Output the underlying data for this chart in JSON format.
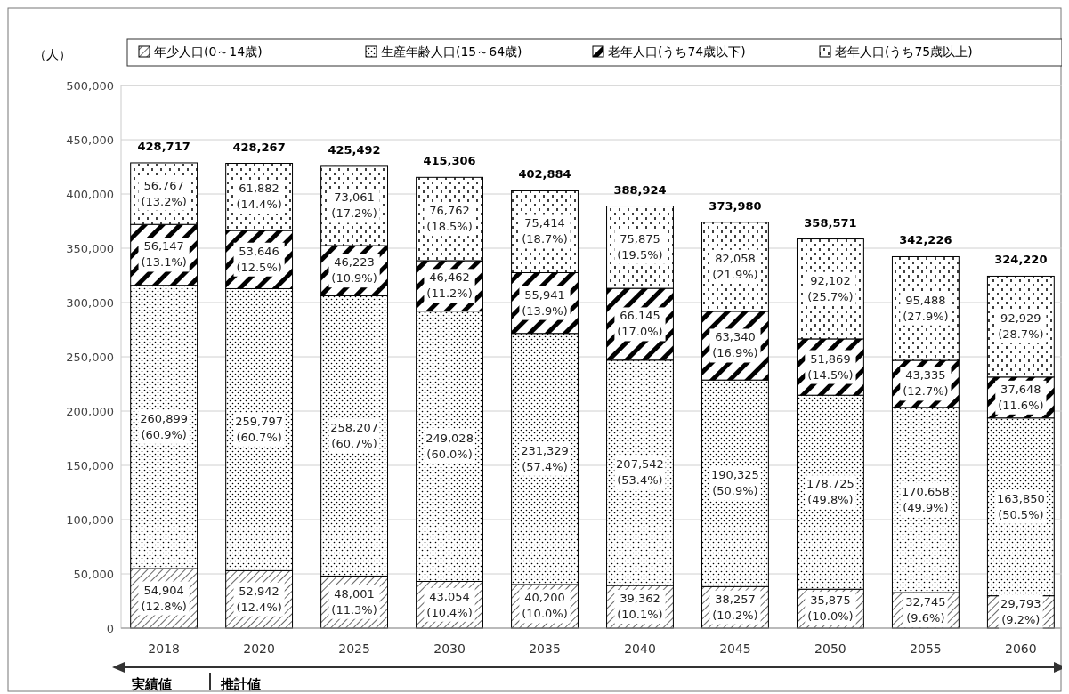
{
  "chart_data": {
    "type": "bar",
    "stacked": true,
    "ylabel": "（人）",
    "categories": [
      "2018",
      "2020",
      "2025",
      "2030",
      "2035",
      "2040",
      "2045",
      "2050",
      "2055",
      "2060"
    ],
    "series": [
      {
        "name": "年少人口(0～14歳)",
        "color": "#000000",
        "values": [
          54904,
          52942,
          48001,
          43054,
          40200,
          39362,
          38257,
          35875,
          32745,
          29793
        ],
        "value_labels": [
          "54,904 (12.8%)",
          "52,942 (12.4%)",
          "48,001 (11.3%)",
          "43,054 (10.4%)",
          "40,200 (10.0%)",
          "39,362 (10.1%)",
          "38,257 (10.2%)",
          "35,875 (10.0%)",
          "32,745 (9.6%)",
          "29,793 (9.2%)"
        ]
      },
      {
        "name": "生産年齢人口(15～64歳)",
        "color": "#000000",
        "values": [
          260899,
          259797,
          258207,
          249028,
          231329,
          207542,
          190325,
          178725,
          170658,
          163850
        ],
        "value_labels": [
          "260,899 (60.9%)",
          "259,797 (60.7%)",
          "258,207 (60.7%)",
          "249,028 (60.0%)",
          "231,329 (57.4%)",
          "207,542 (53.4%)",
          "190,325 (50.9%)",
          "178,725 (49.8%)",
          "170,658 (49.9%)",
          "163,850 (50.5%)"
        ]
      },
      {
        "name": "老年人口(うち74歳以下)",
        "color": "#000000",
        "values": [
          56147,
          53646,
          46223,
          46462,
          55941,
          66145,
          63340,
          51869,
          43335,
          37648
        ],
        "value_labels": [
          "56,147 (13.1%)",
          "53,646 (12.5%)",
          "46,223 (10.9%)",
          "46,462 (11.2%)",
          "55,941 (13.9%)",
          "66,145 (17.0%)",
          "63,340 (16.9%)",
          "51,869 (14.5%)",
          "43,335 (12.7%)",
          "37,648 (11.6%)"
        ]
      },
      {
        "name": "老年人口(うち75歳以上)",
        "color": "#000000",
        "values": [
          56767,
          61882,
          73061,
          76762,
          75414,
          75875,
          82058,
          92102,
          95488,
          92929
        ],
        "value_labels": [
          "56,767 (13.2%)",
          "61,882 (14.4%)",
          "73,061 (17.2%)",
          "76,762 (18.5%)",
          "75,414 (18.7%)",
          "75,875 (19.5%)",
          "82,058 (21.9%)",
          "92,102 (25.7%)",
          "95,488 (27.9%)",
          "92,929 (28.7%)"
        ]
      }
    ],
    "totals": [
      "428,717",
      "428,267",
      "425,492",
      "415,306",
      "402,884",
      "388,924",
      "373,980",
      "358,571",
      "342,226",
      "324,220"
    ],
    "ylim": [
      0,
      500000
    ],
    "yticks": [
      0,
      {
        "value": 50000,
        "label": "50,000"
      },
      {
        "value": 100000,
        "label": "100,000"
      },
      {
        "value": 150000,
        "label": "150,000"
      },
      {
        "value": 200000,
        "label": "200,000"
      },
      {
        "value": 250000,
        "label": "250,000"
      },
      {
        "value": 300000,
        "label": "300,000"
      },
      {
        "value": 350000,
        "label": "350,000"
      },
      {
        "value": 400000,
        "label": "400,000"
      },
      {
        "value": 450000,
        "label": "450,000"
      },
      {
        "value": 500000,
        "label": "500,000"
      }
    ],
    "grid": "y",
    "legend": "top",
    "annotations": [
      "実績値",
      "推計値"
    ]
  }
}
